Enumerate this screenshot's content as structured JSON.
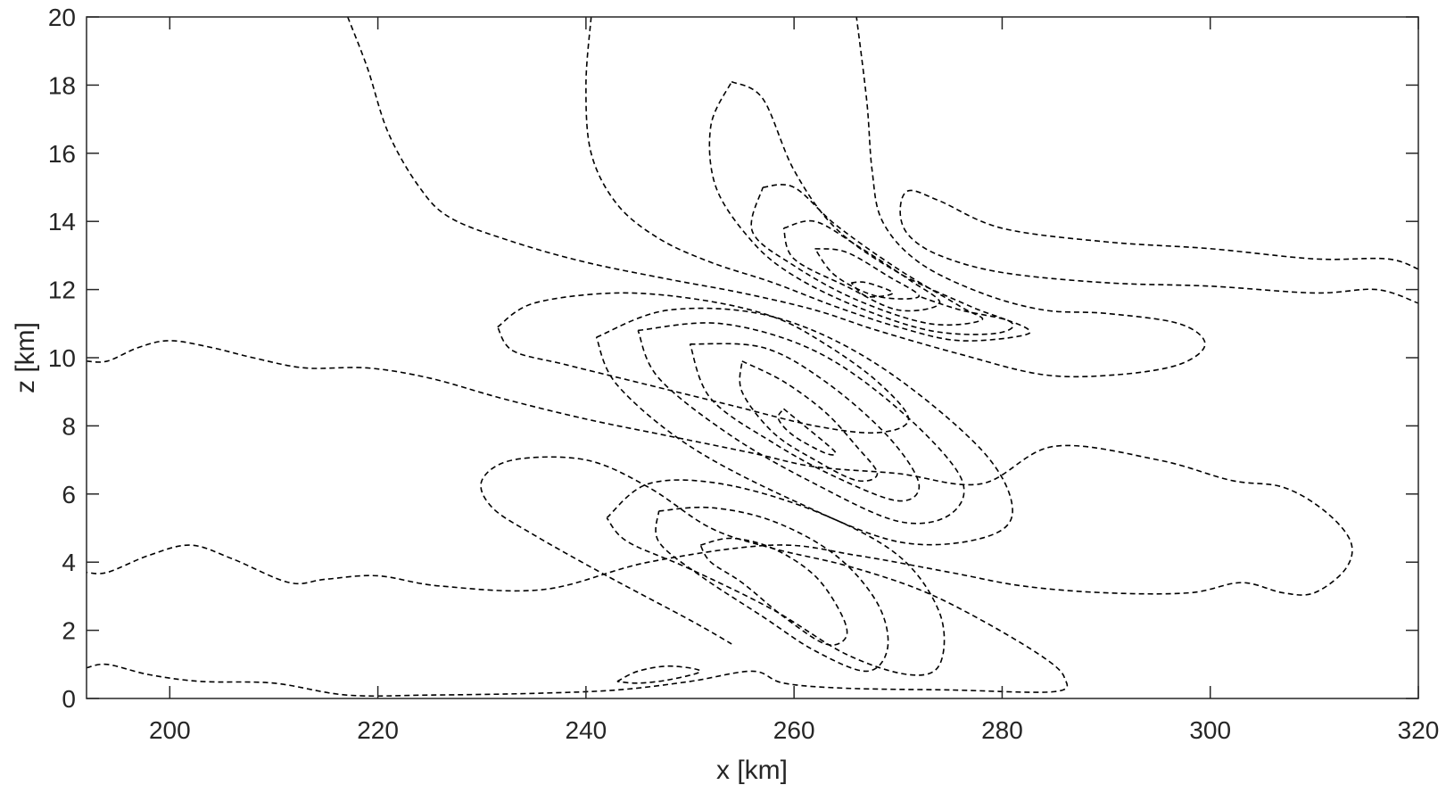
{
  "chart_data": {
    "type": "contour",
    "xlabel": "x [km]",
    "ylabel": "z [km]",
    "xlim": [
      192,
      320
    ],
    "ylim": [
      0,
      20
    ],
    "xticks": [
      200,
      220,
      240,
      260,
      280,
      300,
      320
    ],
    "yticks": [
      0,
      2,
      4,
      6,
      8,
      10,
      12,
      14,
      16,
      18,
      20
    ],
    "line_color": "#000000",
    "line_style": "dashed",
    "contours": [
      {
        "x": [
          192,
          194,
          197,
          200,
          204,
          208,
          213,
          219,
          225,
          232,
          240,
          248,
          256,
          262,
          270,
          278,
          285,
          295,
          302,
          307,
          311,
          313.5,
          313,
          310,
          307,
          303,
          298,
          290,
          282,
          275,
          266,
          258,
          246,
          236,
          226,
          220,
          215,
          211.5,
          206,
          202,
          198,
          194,
          192
        ],
        "y": [
          9.9,
          9.9,
          10.3,
          10.5,
          10.3,
          10.0,
          9.7,
          9.7,
          9.4,
          8.8,
          8.2,
          7.7,
          7.2,
          6.8,
          6.6,
          6.3,
          7.4,
          7.0,
          6.4,
          6.2,
          5.5,
          4.6,
          3.8,
          3.1,
          3.1,
          3.4,
          3.1,
          3.1,
          3.3,
          3.7,
          4.2,
          4.5,
          4.0,
          3.2,
          3.3,
          3.6,
          3.5,
          3.4,
          4.1,
          4.5,
          4.2,
          3.7,
          3.7
        ]
      },
      {
        "x": [
          192,
          194,
          198,
          203,
          210,
          217,
          225,
          235,
          243,
          250,
          256,
          259,
          265,
          275,
          285,
          286,
          284,
          278,
          272,
          265,
          258,
          252,
          246,
          240,
          233,
          230,
          231,
          235,
          242,
          250,
          254
        ],
        "y": [
          0.9,
          1.0,
          0.7,
          0.5,
          0.45,
          0.1,
          0.1,
          0.15,
          0.25,
          0.5,
          0.8,
          0.45,
          0.3,
          0.25,
          0.2,
          0.6,
          1.2,
          2.3,
          3.2,
          3.9,
          4.4,
          5.0,
          6.2,
          7.0,
          7.0,
          6.4,
          5.6,
          4.8,
          3.6,
          2.3,
          1.6
        ]
      },
      {
        "x": [
          217.1,
          219,
          221,
          224,
          227,
          233,
          240,
          248,
          255,
          262,
          268,
          276,
          284,
          291,
          297,
          299.5,
          297,
          290,
          284,
          278,
          272,
          268.5,
          267.5,
          267,
          266
        ],
        "y": [
          20,
          18.5,
          16.6,
          15,
          14.1,
          13.4,
          12.8,
          12.3,
          11.9,
          11.4,
          10.8,
          10.1,
          9.5,
          9.5,
          9.8,
          10.4,
          11.0,
          11.3,
          11.4,
          11.9,
          12.8,
          14.0,
          15.5,
          17.5,
          20
        ]
      },
      {
        "x": [
          240.5,
          240,
          240.5,
          243,
          247,
          252,
          258,
          264,
          270,
          276,
          282.5,
          280.5,
          276,
          272
        ],
        "y": [
          20,
          18,
          16,
          14.5,
          13.5,
          12.8,
          12.2,
          11.5,
          10.9,
          10.5,
          10.7,
          11.1,
          11.4,
          11.8
        ]
      },
      {
        "x": [
          320,
          317,
          310,
          300,
          290,
          280,
          274,
          271,
          270.2,
          271,
          274,
          280,
          290,
          300,
          310,
          316,
          320
        ],
        "y": [
          12.6,
          12.9,
          12.9,
          13.2,
          13.4,
          13.8,
          14.6,
          14.9,
          14.3,
          13.6,
          13.0,
          12.5,
          12.2,
          12.1,
          11.9,
          12.0,
          11.6
        ]
      },
      {
        "x": [
          254,
          257,
          260,
          264,
          270,
          277,
          281,
          279,
          273,
          266,
          260,
          256,
          252.5,
          252,
          254
        ],
        "y": [
          18.1,
          17.6,
          15.5,
          13.8,
          12.5,
          11.5,
          11.0,
          10.7,
          10.8,
          11.5,
          12.4,
          13.4,
          15,
          16.8,
          18.1
        ]
      },
      {
        "x": [
          257,
          260,
          264,
          270,
          276,
          278,
          273,
          266,
          260,
          256,
          257
        ],
        "y": [
          15,
          15,
          13.9,
          12.6,
          11.5,
          11.1,
          11.0,
          11.7,
          12.7,
          13.7,
          15
        ]
      },
      {
        "x": [
          259,
          262,
          266,
          271,
          274,
          270,
          265,
          260,
          259
        ],
        "y": [
          13.8,
          14,
          13.3,
          12.3,
          11.6,
          11.4,
          12.1,
          12.9,
          13.8
        ]
      },
      {
        "x": [
          262,
          265,
          269,
          272,
          268,
          264,
          262
        ],
        "y": [
          13.2,
          13.1,
          12.4,
          11.8,
          11.8,
          12.4,
          13.2
        ]
      },
      {
        "x": [
          265.5,
          267,
          269.5,
          267,
          265.5
        ],
        "y": [
          12.2,
          12.2,
          11.9,
          11.8,
          12.2
        ]
      },
      {
        "x": [
          231.5,
          235,
          243,
          251,
          258,
          263,
          268,
          271,
          268,
          262,
          254,
          246,
          238,
          233,
          231.5
        ],
        "y": [
          10.9,
          11.6,
          11.9,
          11.7,
          11.2,
          10.4,
          9.3,
          8.2,
          7.8,
          8.0,
          8.6,
          9.2,
          9.8,
          10.2,
          10.9
        ]
      },
      {
        "x": [
          259,
          261,
          263,
          264,
          263,
          260,
          258.5,
          259
        ],
        "y": [
          8.5,
          8.0,
          7.5,
          7.2,
          7.2,
          7.7,
          8.2,
          8.5
        ]
      },
      {
        "x": [
          255,
          259,
          263,
          266,
          268,
          266,
          262,
          258,
          255,
          255
        ],
        "y": [
          9.9,
          9.3,
          8.4,
          7.4,
          6.6,
          6.4,
          7.0,
          7.8,
          9.0,
          9.9
        ]
      },
      {
        "x": [
          250,
          257,
          263,
          269,
          272,
          270,
          264,
          258,
          252,
          250
        ],
        "y": [
          10.4,
          10.3,
          9.3,
          7.7,
          6.3,
          5.8,
          6.5,
          7.5,
          8.8,
          10.4
        ]
      },
      {
        "x": [
          245,
          253,
          262,
          270,
          276,
          275,
          270,
          262,
          254,
          247,
          245
        ],
        "y": [
          10.8,
          11.0,
          10.2,
          8.5,
          6.5,
          5.4,
          5.2,
          6.3,
          7.7,
          9.4,
          10.8
        ]
      },
      {
        "x": [
          241,
          248,
          258,
          268,
          278,
          281,
          278,
          270,
          260,
          250,
          243,
          241
        ],
        "y": [
          10.6,
          11.4,
          11.2,
          9.8,
          7.3,
          5.5,
          4.7,
          4.6,
          5.8,
          7.4,
          9.2,
          10.6
        ]
      },
      {
        "x": [
          251,
          254,
          258,
          262,
          264.5,
          265,
          263,
          259,
          255,
          252,
          251
        ],
        "y": [
          4.5,
          4.7,
          4.4,
          3.6,
          2.5,
          1.8,
          1.6,
          2.4,
          3.4,
          4.0,
          4.5
        ]
      },
      {
        "x": [
          247,
          252,
          258,
          264,
          268,
          269,
          267,
          262,
          257,
          251,
          247,
          247
        ],
        "y": [
          5.5,
          5.6,
          5.2,
          4.2,
          2.8,
          1.5,
          0.8,
          1.4,
          2.4,
          3.6,
          4.6,
          5.5
        ]
      },
      {
        "x": [
          242,
          246,
          253,
          262,
          270,
          274,
          274,
          271,
          265,
          258,
          250,
          244,
          242
        ],
        "y": [
          5.3,
          6.3,
          6.3,
          5.5,
          4.2,
          2.5,
          1.0,
          0.7,
          1.3,
          2.6,
          3.8,
          4.6,
          5.3
        ]
      },
      {
        "x": [
          243,
          245,
          248,
          251,
          248,
          245,
          243
        ],
        "y": [
          0.5,
          0.8,
          0.95,
          0.8,
          0.55,
          0.45,
          0.5
        ]
      }
    ]
  }
}
